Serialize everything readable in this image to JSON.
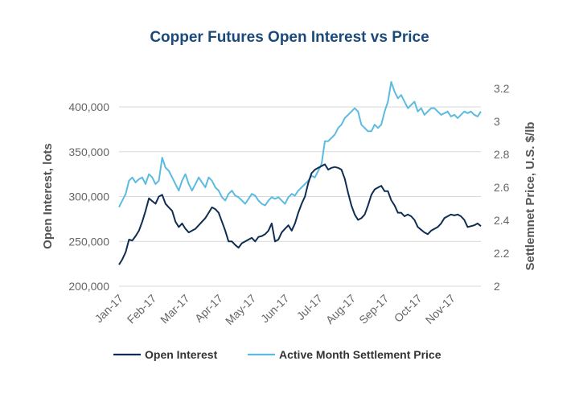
{
  "chart_data": {
    "type": "line",
    "title": "Copper Futures Open Interest vs Price",
    "x_ticks": [
      "Jan-17",
      "Feb-17",
      "Mar-17",
      "Apr-17",
      "May-17",
      "Jun-17",
      "Jul-17",
      "Aug-17",
      "Sep-17",
      "Oct-17",
      "Nov-17"
    ],
    "x_range": [
      0,
      10.9
    ],
    "grid": "horizontal",
    "legend_position": "bottom",
    "y_left": {
      "label": "Open Interest, lots",
      "range": [
        200000,
        400000
      ],
      "ticks": [
        "200,000",
        "250,000",
        "300,000",
        "350,000",
        "400,000"
      ]
    },
    "y_right": {
      "label": "Settlemnet Price, U.S. $/lb",
      "range": [
        2,
        3.2
      ],
      "ticks": [
        "2",
        "2.2",
        "2.4",
        "2.6",
        "2.8",
        "3",
        "3.2"
      ]
    },
    "series": [
      {
        "name": "Open Interest",
        "axis": "left",
        "color": "#0f2d52",
        "x": [
          0,
          0.1,
          0.2,
          0.3,
          0.4,
          0.5,
          0.6,
          0.7,
          0.8,
          0.9,
          1.0,
          1.1,
          1.2,
          1.3,
          1.4,
          1.5,
          1.6,
          1.7,
          1.8,
          1.9,
          2.0,
          2.1,
          2.2,
          2.3,
          2.4,
          2.5,
          2.6,
          2.7,
          2.8,
          2.9,
          3.0,
          3.1,
          3.2,
          3.3,
          3.4,
          3.5,
          3.6,
          3.7,
          3.8,
          3.9,
          4.0,
          4.1,
          4.2,
          4.3,
          4.4,
          4.5,
          4.6,
          4.7,
          4.8,
          4.9,
          5.0,
          5.1,
          5.2,
          5.3,
          5.4,
          5.5,
          5.6,
          5.7,
          5.8,
          5.9,
          6.0,
          6.1,
          6.2,
          6.3,
          6.4,
          6.5,
          6.6,
          6.7,
          6.8,
          6.9,
          7.0,
          7.1,
          7.2,
          7.3,
          7.4,
          7.5,
          7.6,
          7.7,
          7.8,
          7.9,
          8.0,
          8.1,
          8.2,
          8.3,
          8.4,
          8.5,
          8.6,
          8.7,
          8.8,
          8.9,
          9.0,
          9.1,
          9.2,
          9.3,
          9.4,
          9.5,
          9.6,
          9.7,
          9.8,
          9.9,
          10.0,
          10.1,
          10.2,
          10.3,
          10.4,
          10.5,
          10.6,
          10.7,
          10.8,
          10.9
        ],
        "values": [
          224000,
          230000,
          238000,
          252000,
          251000,
          256000,
          262000,
          272000,
          284000,
          298000,
          295000,
          292000,
          300000,
          302000,
          292000,
          288000,
          284000,
          272000,
          266000,
          270000,
          264000,
          260000,
          262000,
          264000,
          268000,
          272000,
          276000,
          282000,
          288000,
          286000,
          282000,
          272000,
          262000,
          250000,
          250000,
          246000,
          243000,
          248000,
          250000,
          252000,
          254000,
          250000,
          255000,
          256000,
          258000,
          262000,
          270000,
          250000,
          252000,
          260000,
          264000,
          268000,
          262000,
          270000,
          282000,
          292000,
          300000,
          315000,
          326000,
          330000,
          332000,
          334000,
          336000,
          330000,
          332000,
          333000,
          332000,
          330000,
          320000,
          304000,
          290000,
          280000,
          274000,
          276000,
          280000,
          290000,
          302000,
          308000,
          310000,
          312000,
          306000,
          306000,
          296000,
          290000,
          282000,
          282000,
          278000,
          280000,
          278000,
          274000,
          266000,
          263000,
          260000,
          258000,
          262000,
          264000,
          266000,
          270000,
          276000,
          278000,
          280000,
          279000,
          280000,
          278000,
          274000,
          266000,
          267000,
          268000,
          270000,
          267000
        ]
      },
      {
        "name": "Active Month Settlement Price",
        "axis": "right",
        "color": "#5bbbe0",
        "x": [
          0,
          0.1,
          0.2,
          0.3,
          0.4,
          0.5,
          0.6,
          0.7,
          0.8,
          0.9,
          1.0,
          1.1,
          1.2,
          1.3,
          1.4,
          1.5,
          1.6,
          1.7,
          1.8,
          1.9,
          2.0,
          2.1,
          2.2,
          2.3,
          2.4,
          2.5,
          2.6,
          2.7,
          2.8,
          2.9,
          3.0,
          3.1,
          3.2,
          3.3,
          3.4,
          3.5,
          3.6,
          3.7,
          3.8,
          3.9,
          4.0,
          4.1,
          4.2,
          4.3,
          4.4,
          4.5,
          4.6,
          4.7,
          4.8,
          4.9,
          5.0,
          5.1,
          5.2,
          5.3,
          5.4,
          5.5,
          5.6,
          5.7,
          5.8,
          5.9,
          6.0,
          6.1,
          6.2,
          6.3,
          6.4,
          6.5,
          6.6,
          6.7,
          6.8,
          6.9,
          7.0,
          7.1,
          7.2,
          7.3,
          7.4,
          7.5,
          7.6,
          7.7,
          7.8,
          7.9,
          8.0,
          8.1,
          8.2,
          8.3,
          8.4,
          8.5,
          8.6,
          8.7,
          8.8,
          8.9,
          9.0,
          9.1,
          9.2,
          9.3,
          9.4,
          9.5,
          9.6,
          9.7,
          9.8,
          9.9,
          10.0,
          10.1,
          10.2,
          10.3,
          10.4,
          10.5,
          10.6,
          10.7,
          10.8,
          10.9
        ],
        "values": [
          2.48,
          2.52,
          2.56,
          2.64,
          2.66,
          2.63,
          2.65,
          2.66,
          2.62,
          2.68,
          2.66,
          2.62,
          2.64,
          2.78,
          2.72,
          2.7,
          2.66,
          2.62,
          2.58,
          2.64,
          2.68,
          2.62,
          2.58,
          2.62,
          2.66,
          2.63,
          2.6,
          2.66,
          2.64,
          2.6,
          2.58,
          2.54,
          2.52,
          2.56,
          2.58,
          2.55,
          2.54,
          2.52,
          2.5,
          2.53,
          2.56,
          2.55,
          2.52,
          2.5,
          2.49,
          2.52,
          2.54,
          2.53,
          2.54,
          2.52,
          2.5,
          2.54,
          2.56,
          2.55,
          2.58,
          2.6,
          2.62,
          2.64,
          2.67,
          2.66,
          2.7,
          2.74,
          2.88,
          2.88,
          2.9,
          2.92,
          2.96,
          2.98,
          3.02,
          3.04,
          3.06,
          3.08,
          3.06,
          2.98,
          2.96,
          2.94,
          2.94,
          2.98,
          2.96,
          2.98,
          3.06,
          3.12,
          3.24,
          3.18,
          3.14,
          3.16,
          3.12,
          3.08,
          3.1,
          3.12,
          3.06,
          3.08,
          3.04,
          3.06,
          3.08,
          3.08,
          3.06,
          3.04,
          3.05,
          3.06,
          3.03,
          3.04,
          3.02,
          3.04,
          3.06,
          3.05,
          3.06,
          3.04,
          3.03,
          3.06
        ]
      }
    ]
  }
}
